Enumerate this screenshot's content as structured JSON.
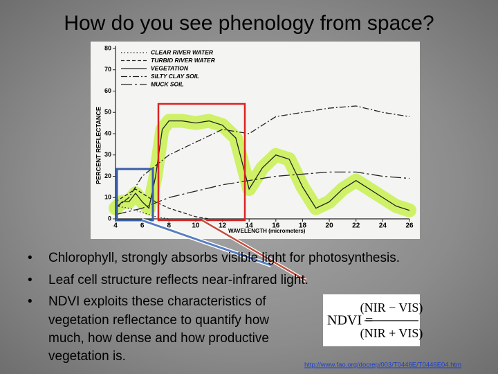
{
  "title": "How do you see phenology from space?",
  "chart_data": {
    "type": "line",
    "ylabel": "PERCENT REFLECTANCE",
    "xlabel": "WAVELENGTH (micrometers)",
    "xlim": [
      0.4,
      2.6
    ],
    "ylim": [
      0,
      80
    ],
    "xticks": [
      {
        "value": 0.4,
        "label": "4"
      },
      {
        "value": 0.6,
        "label": "6"
      },
      {
        "value": 0.8,
        "label": "8"
      },
      {
        "value": 1.0,
        "label": "10"
      },
      {
        "value": 1.2,
        "label": "12"
      },
      {
        "value": 1.4,
        "label": "14"
      },
      {
        "value": 1.6,
        "label": "16"
      },
      {
        "value": 1.8,
        "label": "18"
      },
      {
        "value": 2.0,
        "label": "20"
      },
      {
        "value": 2.2,
        "label": "22"
      },
      {
        "value": 2.4,
        "label": "24"
      },
      {
        "value": 2.6,
        "label": "26"
      }
    ],
    "yticks": [
      0,
      10,
      20,
      30,
      40,
      50,
      60,
      70,
      80
    ],
    "series": [
      {
        "name": "CLEAR RIVER WATER",
        "color": "#222222",
        "dash": "dotted",
        "x": [
          0.4,
          0.5,
          0.6,
          0.7,
          0.8
        ],
        "values": [
          6,
          5,
          3,
          1,
          0
        ]
      },
      {
        "name": "TURBID RIVER WATER",
        "color": "#222222",
        "dash": "dashed",
        "x": [
          0.4,
          0.5,
          0.55,
          0.6,
          0.7,
          0.8,
          0.9,
          1.0,
          1.1
        ],
        "values": [
          8,
          12,
          14,
          12,
          8,
          5,
          3,
          1,
          0
        ]
      },
      {
        "name": "VEGETATION",
        "color": "#222222",
        "dash": "solid",
        "x": [
          0.4,
          0.45,
          0.5,
          0.55,
          0.6,
          0.65,
          0.7,
          0.75,
          0.8,
          0.9,
          1.0,
          1.1,
          1.2,
          1.3,
          1.4,
          1.5,
          1.6,
          1.7,
          1.8,
          1.9,
          2.0,
          2.1,
          2.2,
          2.3,
          2.4,
          2.5,
          2.6
        ],
        "values": [
          5,
          8,
          8,
          12,
          8,
          5,
          20,
          42,
          46,
          46,
          45,
          46,
          44,
          38,
          14,
          24,
          30,
          28,
          15,
          5,
          8,
          14,
          18,
          14,
          10,
          6,
          4
        ]
      },
      {
        "name": "SILTY CLAY SOIL",
        "color": "#222222",
        "dash": "dashdot",
        "x": [
          0.4,
          0.5,
          0.6,
          0.8,
          1.0,
          1.2,
          1.4,
          1.6,
          1.8,
          2.0,
          2.2,
          2.4,
          2.6
        ],
        "values": [
          5,
          10,
          20,
          30,
          36,
          42,
          40,
          48,
          50,
          52,
          53,
          50,
          48
        ]
      },
      {
        "name": "MUCK SOIL",
        "color": "#222222",
        "dash": "longdashdot",
        "x": [
          0.4,
          0.6,
          0.8,
          1.0,
          1.2,
          1.4,
          1.6,
          1.8,
          2.0,
          2.2,
          2.4,
          2.6
        ],
        "values": [
          2,
          5,
          10,
          13,
          16,
          18,
          20,
          21,
          22,
          22,
          20,
          19
        ]
      }
    ]
  },
  "bullets": [
    "Chlorophyll, strongly absorbs visible light for photosynthesis.",
    "Leaf cell structure reflects near-infrared light.",
    "NDVI exploits these characteristics of",
    "vegetation reflectance to quantify how",
    "much, how dense and how productive",
    "vegetation is."
  ],
  "formula": {
    "lhs": "NDVI =",
    "numerator": "(NIR − VIS)",
    "denominator": "(NIR + VIS)"
  },
  "link": "http://www.fao.org/docrep/003/T0446E/T0446E04.htm"
}
